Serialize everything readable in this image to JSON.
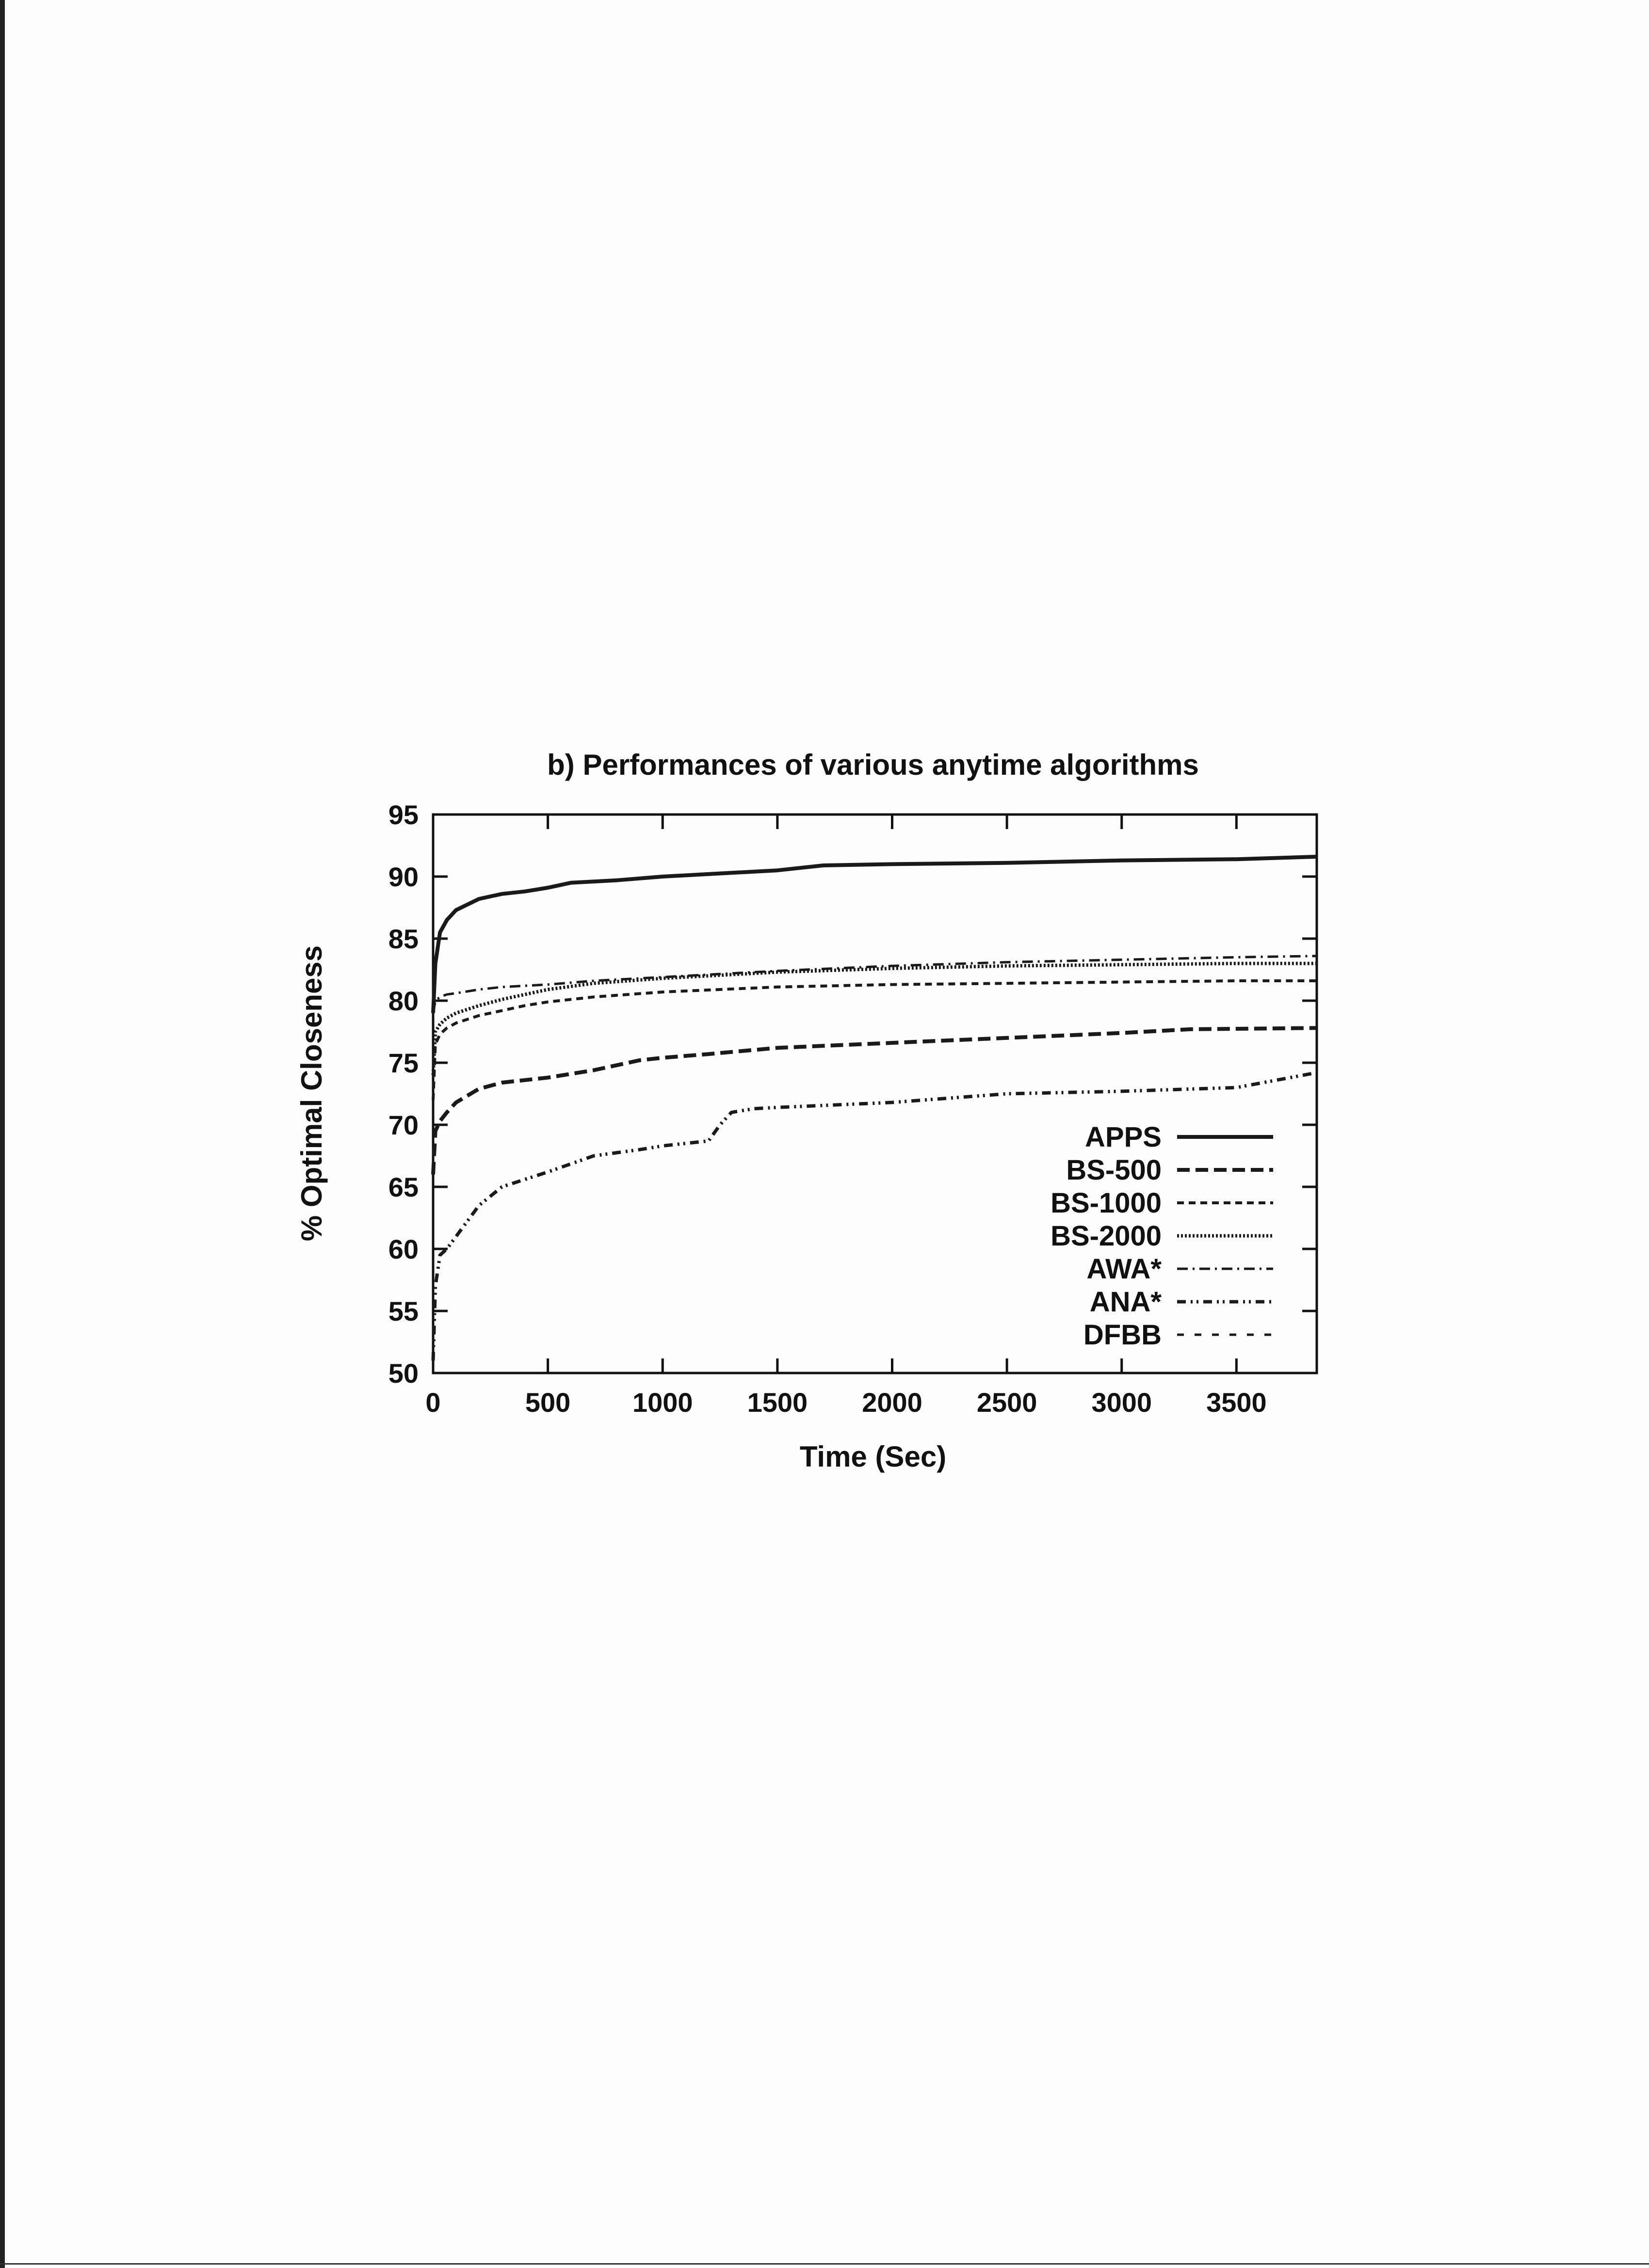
{
  "chart_data": {
    "type": "line",
    "title": "b) Performances of various anytime algorithms",
    "xlabel": "Time (Sec)",
    "ylabel": "% Optimal Closeness",
    "xlim": [
      0,
      3850
    ],
    "ylim": [
      50,
      95
    ],
    "xticks": [
      "0",
      "500",
      "1000",
      "1500",
      "2000",
      "2500",
      "3000",
      "3500"
    ],
    "yticks": [
      "50",
      "55",
      "60",
      "65",
      "70",
      "75",
      "80",
      "85",
      "90",
      "95"
    ],
    "grid": false,
    "legend_position": "bottom-right inside",
    "series": [
      {
        "name": "APPS",
        "style": "solid",
        "x": [
          0,
          10,
          30,
          60,
          100,
          200,
          300,
          400,
          500,
          600,
          800,
          1000,
          1200,
          1500,
          1700,
          2000,
          2500,
          3000,
          3500,
          3850
        ],
        "y": [
          79,
          83,
          85.5,
          86.5,
          87.3,
          88.2,
          88.6,
          88.8,
          89.1,
          89.5,
          89.7,
          90.0,
          90.2,
          90.5,
          90.9,
          91.0,
          91.1,
          91.3,
          91.4,
          91.6
        ]
      },
      {
        "name": "BS-500",
        "style": "long-dash",
        "x": [
          0,
          10,
          30,
          60,
          100,
          200,
          300,
          400,
          500,
          700,
          900,
          1000,
          1200,
          1500,
          2000,
          2500,
          3000,
          3300,
          3850
        ],
        "y": [
          66,
          69.5,
          70.3,
          71.0,
          71.8,
          72.9,
          73.4,
          73.6,
          73.8,
          74.4,
          75.2,
          75.4,
          75.7,
          76.2,
          76.6,
          77.0,
          77.4,
          77.7,
          77.8
        ]
      },
      {
        "name": "BS-1000",
        "style": "dash",
        "x": [
          0,
          10,
          30,
          60,
          100,
          200,
          300,
          400,
          500,
          700,
          1000,
          1500,
          2000,
          2500,
          3000,
          3500,
          3850
        ],
        "y": [
          72,
          76.5,
          77.3,
          77.8,
          78.2,
          78.8,
          79.2,
          79.6,
          79.9,
          80.3,
          80.7,
          81.1,
          81.3,
          81.4,
          81.5,
          81.6,
          81.6
        ]
      },
      {
        "name": "BS-2000",
        "style": "dotted",
        "x": [
          0,
          10,
          30,
          60,
          100,
          200,
          300,
          400,
          500,
          700,
          1000,
          1500,
          2000,
          2500,
          3000,
          3500,
          3850
        ],
        "y": [
          74,
          77.5,
          78.1,
          78.6,
          79.0,
          79.6,
          80.1,
          80.5,
          80.9,
          81.4,
          81.8,
          82.3,
          82.6,
          82.8,
          82.9,
          83.0,
          83.0
        ]
      },
      {
        "name": "AWA*",
        "style": "dash-dot",
        "x": [
          0,
          10,
          30,
          60,
          100,
          200,
          300,
          400,
          500,
          700,
          1000,
          1500,
          2000,
          2500,
          3000,
          3500,
          3850
        ],
        "y": [
          79,
          80.0,
          80.3,
          80.5,
          80.6,
          80.9,
          81.1,
          81.2,
          81.3,
          81.6,
          81.9,
          82.4,
          82.8,
          83.1,
          83.3,
          83.5,
          83.6
        ]
      },
      {
        "name": "ANA*",
        "style": "dash-dot-dot",
        "x": [
          0,
          10,
          30,
          60,
          100,
          200,
          300,
          400,
          500,
          700,
          900,
          1000,
          1200,
          1250,
          1300,
          1400,
          1500,
          2000,
          2500,
          3000,
          3500,
          3850
        ],
        "y": [
          51,
          57,
          59.5,
          60.0,
          61.0,
          63.5,
          65.0,
          65.6,
          66.2,
          67.5,
          68.0,
          68.3,
          68.7,
          70.0,
          71.0,
          71.3,
          71.4,
          71.8,
          72.5,
          72.7,
          73.0,
          74.2
        ]
      },
      {
        "name": "DFBB",
        "style": "sparse-dash",
        "x": [],
        "y": []
      }
    ]
  }
}
